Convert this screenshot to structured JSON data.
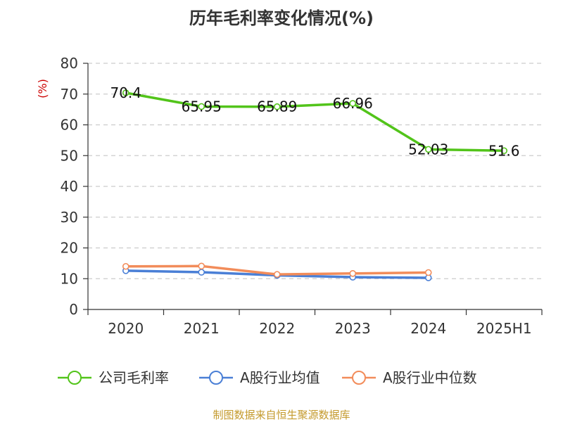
{
  "chart_data": {
    "type": "line",
    "title": "历年毛利率变化情况(%)",
    "xlabel": "",
    "ylabel": "(%)",
    "ylim": [
      0,
      80
    ],
    "yticks": [
      0,
      10,
      20,
      30,
      40,
      50,
      60,
      70,
      80
    ],
    "categories": [
      "2020",
      "2021",
      "2022",
      "2023",
      "2024",
      "2025H1"
    ],
    "grid": true,
    "legend_position": "bottom",
    "series": [
      {
        "name": "公司毛利率",
        "color": "#52c41a",
        "values": [
          70.4,
          65.95,
          65.89,
          66.96,
          52.03,
          51.6
        ],
        "labels": [
          "70.4",
          "65.95",
          "65.89",
          "66.96",
          "52.03",
          "51.6"
        ]
      },
      {
        "name": "A股行业均值",
        "color": "#4a7fd6",
        "values": [
          12.6,
          12.1,
          11.1,
          10.5,
          10.3,
          null
        ]
      },
      {
        "name": "A股行业中位数",
        "color": "#f28c5a",
        "values": [
          14.0,
          14.1,
          11.4,
          11.7,
          12.0,
          null
        ]
      }
    ]
  },
  "source_text": "制图数据来自恒生聚源数据库"
}
